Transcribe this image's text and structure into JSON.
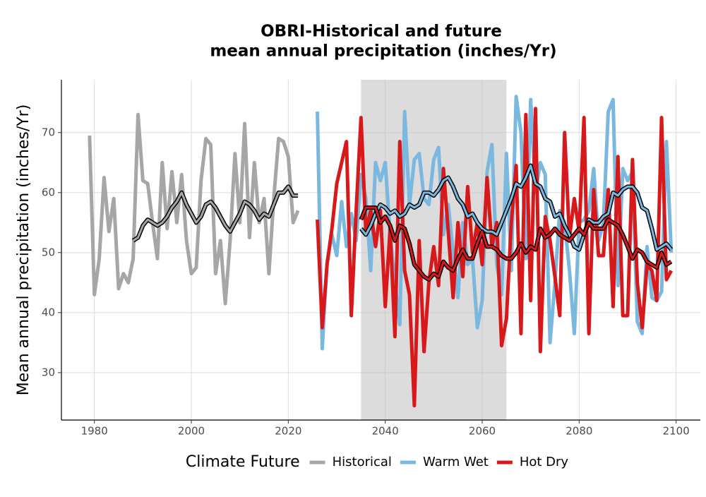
{
  "chart_data": {
    "type": "line",
    "title": [
      "OBRI-Historical and future",
      "mean annual precipitation (inches/Yr)"
    ],
    "y_label": "Mean annual precipitation (inches/Yr)",
    "legend_title": "Climate Future",
    "xlim": [
      1973.2,
      2105
    ],
    "ylim": [
      22.1,
      78.8
    ],
    "xticks": [
      1980,
      2000,
      2020,
      2040,
      2060,
      2080,
      2100
    ],
    "yticks": [
      30,
      40,
      50,
      60,
      70
    ],
    "grid": true,
    "highlight_span": [
      2035,
      2065
    ],
    "series": [
      {
        "name": "Historical",
        "color": "#a6a6a6",
        "x": [
          1979,
          1980,
          1981,
          1982,
          1983,
          1984,
          1985,
          1986,
          1987,
          1988,
          1989,
          1990,
          1991,
          1992,
          1993,
          1994,
          1995,
          1996,
          1997,
          1998,
          1999,
          2000,
          2001,
          2002,
          2003,
          2004,
          2005,
          2006,
          2007,
          2008,
          2009,
          2010,
          2011,
          2012,
          2013,
          2014,
          2015,
          2016,
          2017,
          2018,
          2019,
          2020,
          2021,
          2022
        ],
        "values": [
          69.5,
          43,
          49,
          62.5,
          53.5,
          59,
          44,
          46.5,
          45,
          49,
          73,
          62,
          61.5,
          55,
          49,
          65,
          54,
          63.5,
          55,
          63,
          52,
          46.5,
          47.5,
          62,
          69,
          68,
          46.5,
          52,
          41.5,
          52,
          66.5,
          55,
          71.5,
          52.5,
          65,
          55,
          59,
          46.5,
          59,
          69,
          68.5,
          66,
          55,
          57
        ],
        "smooth_x": [
          1988,
          1989,
          1990,
          1991,
          1992,
          1993,
          1994,
          1995,
          1996,
          1997,
          1998,
          1999,
          2000,
          2001,
          2002,
          2003,
          2004,
          2005,
          2006,
          2007,
          2008,
          2009,
          2010,
          2011,
          2012,
          2013,
          2014,
          2015,
          2016,
          2017,
          2018,
          2019,
          2020,
          2021,
          2022
        ],
        "smooth": [
          52,
          52.5,
          54.5,
          55.5,
          55,
          54.5,
          55,
          56,
          57.5,
          58.5,
          60,
          58,
          56.5,
          55,
          56,
          58,
          58.5,
          57.5,
          56,
          54.5,
          53.5,
          55,
          56.5,
          58.5,
          58,
          57,
          55.5,
          56.5,
          56,
          58,
          60,
          60,
          61,
          59.5,
          59.5
        ]
      },
      {
        "name": "Warm Wet",
        "color": "#7ab8e0",
        "x": [
          2026,
          2027,
          2028,
          2029,
          2030,
          2031,
          2032,
          2033,
          2034,
          2035,
          2036,
          2037,
          2038,
          2039,
          2040,
          2041,
          2042,
          2043,
          2044,
          2045,
          2046,
          2047,
          2048,
          2049,
          2050,
          2051,
          2052,
          2053,
          2054,
          2055,
          2056,
          2057,
          2058,
          2059,
          2060,
          2061,
          2062,
          2063,
          2064,
          2065,
          2066,
          2067,
          2068,
          2069,
          2070,
          2071,
          2072,
          2073,
          2074,
          2075,
          2076,
          2077,
          2078,
          2079,
          2080,
          2081,
          2082,
          2083,
          2084,
          2085,
          2086,
          2087,
          2088,
          2089,
          2090,
          2091,
          2092,
          2093,
          2094,
          2095,
          2096,
          2097,
          2098,
          2099
        ],
        "values": [
          73.5,
          34,
          48.5,
          53,
          49.5,
          58.5,
          51,
          56.5,
          52,
          63,
          59,
          47,
          65,
          62,
          65,
          53,
          45,
          38,
          73.5,
          58,
          65.5,
          66.5,
          59,
          58,
          65.5,
          67.5,
          53,
          58,
          50,
          42.5,
          55,
          48,
          49,
          37.5,
          42,
          63.5,
          68,
          48,
          43,
          66.5,
          47,
          76,
          70,
          49,
          75.5,
          60,
          65,
          63,
          35,
          45,
          57,
          55,
          47,
          36.5,
          55,
          55.5,
          57,
          64,
          52,
          55,
          73.5,
          75.5,
          44.5,
          64,
          62,
          63.5,
          38.5,
          36.5,
          51,
          42.5,
          42,
          43.5,
          68.5,
          50
        ],
        "smooth_x": [
          2035,
          2036,
          2037,
          2038,
          2039,
          2040,
          2041,
          2042,
          2043,
          2044,
          2045,
          2046,
          2047,
          2048,
          2049,
          2050,
          2051,
          2052,
          2053,
          2054,
          2055,
          2056,
          2057,
          2058,
          2059,
          2060,
          2061,
          2062,
          2063,
          2064,
          2065,
          2066,
          2067,
          2068,
          2069,
          2070,
          2071,
          2072,
          2073,
          2074,
          2075,
          2076,
          2077,
          2078,
          2079,
          2080,
          2081,
          2082,
          2083,
          2084,
          2085,
          2086,
          2087,
          2088,
          2089,
          2090,
          2091,
          2092,
          2093,
          2094,
          2095,
          2096,
          2097,
          2098,
          2099
        ],
        "smooth": [
          54,
          53,
          54.5,
          56.5,
          58,
          57.5,
          56.5,
          57,
          56,
          56.5,
          58,
          57.5,
          58,
          60,
          60,
          59.5,
          60.5,
          62,
          62.5,
          61,
          59,
          58,
          56,
          56.5,
          55,
          54,
          53.5,
          53.5,
          53,
          55,
          57,
          59,
          61.5,
          61,
          62.5,
          64.5,
          61.5,
          61,
          59,
          58.5,
          56,
          56.5,
          54.5,
          53,
          51,
          50.5,
          53,
          55.5,
          55,
          55,
          56,
          56.5,
          60,
          59.5,
          60.5,
          61,
          61,
          60,
          57.5,
          57,
          54,
          50.5,
          51,
          51.5,
          50.5
        ]
      },
      {
        "name": "Hot Dry",
        "color": "#d7191c",
        "x": [
          2026,
          2027,
          2028,
          2029,
          2030,
          2031,
          2032,
          2033,
          2034,
          2035,
          2036,
          2037,
          2038,
          2039,
          2040,
          2041,
          2042,
          2043,
          2044,
          2045,
          2046,
          2047,
          2048,
          2049,
          2050,
          2051,
          2052,
          2053,
          2054,
          2055,
          2056,
          2057,
          2058,
          2059,
          2060,
          2061,
          2062,
          2063,
          2064,
          2065,
          2066,
          2067,
          2068,
          2069,
          2070,
          2071,
          2072,
          2073,
          2074,
          2075,
          2076,
          2077,
          2078,
          2079,
          2080,
          2081,
          2082,
          2083,
          2084,
          2085,
          2086,
          2087,
          2088,
          2089,
          2090,
          2091,
          2092,
          2093,
          2094,
          2095,
          2096,
          2097,
          2098,
          2099
        ],
        "values": [
          55.5,
          37.5,
          48,
          54,
          61.5,
          65,
          68.5,
          39.5,
          57,
          72.5,
          53.5,
          57,
          51,
          57,
          41,
          54,
          36,
          68.5,
          47,
          43,
          24.5,
          52,
          33.5,
          45,
          51,
          44.5,
          64,
          53.5,
          42.5,
          55,
          46,
          61,
          50,
          55,
          48,
          62.5,
          51,
          55,
          34.5,
          39,
          55,
          64.5,
          36.5,
          73,
          42,
          74,
          33.5,
          56,
          52,
          46,
          39.5,
          70,
          52.5,
          59,
          53.5,
          72.5,
          36.5,
          60.5,
          49.5,
          49.5,
          60.5,
          41,
          66,
          39.5,
          39.5,
          65.5,
          45,
          37.5,
          48,
          47,
          42,
          72.5,
          45.5,
          47
        ],
        "smooth_x": [
          2035,
          2036,
          2037,
          2038,
          2039,
          2040,
          2041,
          2042,
          2043,
          2044,
          2045,
          2046,
          2047,
          2048,
          2049,
          2050,
          2051,
          2052,
          2053,
          2054,
          2055,
          2056,
          2057,
          2058,
          2059,
          2060,
          2061,
          2062,
          2063,
          2064,
          2065,
          2066,
          2067,
          2068,
          2069,
          2070,
          2071,
          2072,
          2073,
          2074,
          2075,
          2076,
          2077,
          2078,
          2079,
          2080,
          2081,
          2082,
          2083,
          2084,
          2085,
          2086,
          2087,
          2088,
          2089,
          2090,
          2091,
          2092,
          2093,
          2094,
          2095,
          2096,
          2097,
          2098,
          2099
        ],
        "smooth": [
          55.5,
          57.5,
          57.5,
          57.5,
          55,
          56,
          54.5,
          52,
          54.5,
          54,
          51.5,
          48,
          47,
          46,
          45.5,
          46.5,
          46,
          48.5,
          47.5,
          47,
          49,
          50.5,
          49,
          49,
          51.5,
          53.5,
          51,
          51,
          50.5,
          49.5,
          49,
          49,
          50,
          51.5,
          50,
          51,
          50.5,
          54,
          52.5,
          53,
          54,
          53,
          52.5,
          52,
          53,
          54,
          53,
          55,
          54,
          54,
          54,
          55.5,
          55,
          54.5,
          53,
          51,
          49,
          50.5,
          50,
          48.5,
          48,
          47.5,
          50,
          48,
          48.5
        ]
      }
    ]
  }
}
